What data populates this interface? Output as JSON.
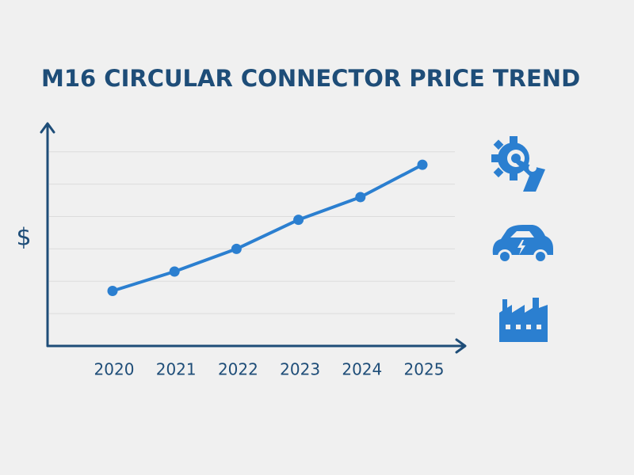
{
  "chart_data": {
    "type": "line",
    "title": "M16 CIRCULAR CONNECTOR PRICE TREND",
    "y_label": "$",
    "categories": [
      "2020",
      "2021",
      "2022",
      "2023",
      "2024",
      "2025"
    ],
    "values": [
      1.7,
      2.3,
      3.0,
      3.9,
      4.6,
      5.6
    ],
    "color": "#2b7fd0",
    "ylim": [
      0,
      6.9
    ],
    "ygrid": [
      1,
      2,
      3,
      4,
      5,
      6
    ],
    "grid": true
  }
}
